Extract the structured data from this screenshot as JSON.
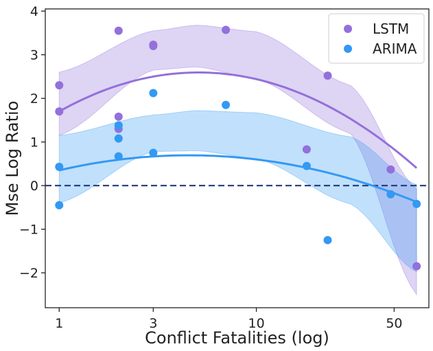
{
  "chart_data": {
    "type": "scatter",
    "title": "",
    "xlabel": "Conflict Fatalities (log)",
    "ylabel": "Mse Log Ratio",
    "x_scale": "log",
    "xlim": [
      0.85,
      75
    ],
    "ylim": [
      -2.8,
      4.05
    ],
    "x_ticks": [
      1,
      3,
      10,
      50
    ],
    "x_tick_labels": [
      "1",
      "3",
      "10",
      "50"
    ],
    "y_ticks": [
      -2,
      -1,
      0,
      1,
      2,
      3,
      4
    ],
    "y_tick_labels": [
      "−2",
      "−1",
      "0",
      "1",
      "2",
      "3",
      "4"
    ],
    "grid": false,
    "legend_position": "top-right",
    "reference_line": {
      "y": 0,
      "style": "dashed",
      "color": "#1f3a7a"
    },
    "series": [
      {
        "name": "LSTM",
        "color": "#9370db",
        "points": [
          [
            1,
            2.3
          ],
          [
            1,
            1.7
          ],
          [
            2,
            3.55
          ],
          [
            2,
            1.58
          ],
          [
            2,
            1.3
          ],
          [
            3,
            3.23
          ],
          [
            3,
            3.2
          ],
          [
            7,
            3.57
          ],
          [
            18,
            0.83
          ],
          [
            23,
            2.52
          ],
          [
            48,
            0.37
          ],
          [
            65,
            -1.85
          ]
        ],
        "fit": {
          "type": "quadratic-in-log-x",
          "coefficients": [
            1.7,
            2.53,
            -1.79
          ]
        },
        "band": {
          "x": [
            1,
            3,
            5,
            10,
            30,
            65
          ],
          "lower": [
            1.15,
            2.65,
            2.72,
            2.45,
            1.2,
            -2.5
          ],
          "upper": [
            2.6,
            3.55,
            3.68,
            3.53,
            2.3,
            -0.08
          ]
        }
      },
      {
        "name": "ARIMA",
        "color": "#3399f3",
        "points": [
          [
            1,
            0.43
          ],
          [
            1,
            -0.45
          ],
          [
            2,
            1.08
          ],
          [
            2,
            1.38
          ],
          [
            2,
            0.67
          ],
          [
            3,
            2.12
          ],
          [
            3,
            0.75
          ],
          [
            7,
            1.85
          ],
          [
            18,
            0.45
          ],
          [
            23,
            -1.25
          ],
          [
            48,
            -0.2
          ],
          [
            65,
            -0.42
          ]
        ],
        "fit": {
          "type": "quadratic-in-log-x",
          "coefficients": [
            0.35,
            1.05,
            -0.8
          ]
        },
        "band": {
          "x": [
            1,
            3,
            5,
            10,
            30,
            65
          ],
          "lower": [
            -0.4,
            0.78,
            0.8,
            0.62,
            -0.42,
            -1.98
          ],
          "upper": [
            1.15,
            1.62,
            1.72,
            1.67,
            1.12,
            0.02
          ]
        }
      }
    ]
  }
}
